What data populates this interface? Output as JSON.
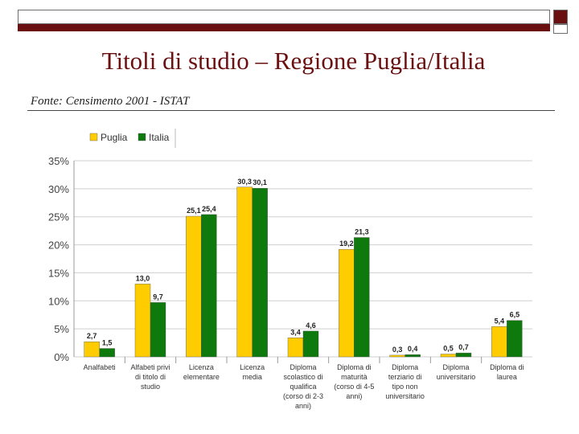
{
  "header": {
    "title": "Titoli di studio – Regione Puglia/Italia",
    "source": "Fonte: Censimento 2001 - ISTAT"
  },
  "chart_data": {
    "type": "bar",
    "categories": [
      [
        "Analfabeti"
      ],
      [
        "Alfabeti privi",
        "di titolo di",
        "studio"
      ],
      [
        "Licenza",
        "elementare"
      ],
      [
        "Licenza",
        "media"
      ],
      [
        "Diploma",
        "scolastico di",
        "qualifica",
        "(corso di 2-3",
        "anni)"
      ],
      [
        "Diploma di",
        "maturità",
        "(corso di 4-5",
        "anni)"
      ],
      [
        "Diploma",
        "terziario di",
        "tipo non",
        "universitario"
      ],
      [
        "Diploma",
        "universitario"
      ],
      [
        "Diploma di",
        "laurea"
      ]
    ],
    "series": [
      {
        "name": "Puglia",
        "color": "#ffcc00",
        "values": [
          2.7,
          13.0,
          25.1,
          30.3,
          3.4,
          19.2,
          0.3,
          0.5,
          5.4
        ]
      },
      {
        "name": "Italia",
        "color": "#0e7a0e",
        "values": [
          1.5,
          9.7,
          25.4,
          30.1,
          4.6,
          21.3,
          0.4,
          0.7,
          6.5
        ]
      }
    ],
    "data_labels": [
      [
        "2,7",
        "13,0",
        "25,1",
        "30,3",
        "3,4",
        "19,2",
        "0,3",
        "0,5",
        "5,4"
      ],
      [
        "1,5",
        "9,7",
        "25,4",
        "30,1",
        "4,6",
        "21,3",
        "0,4",
        "0,7",
        "6,5"
      ]
    ],
    "yticks": [
      "0%",
      "5%",
      "10%",
      "15%",
      "20%",
      "25%",
      "30%",
      "35%"
    ],
    "ylim": [
      0,
      35
    ],
    "grid": true,
    "legend": "top-left"
  }
}
